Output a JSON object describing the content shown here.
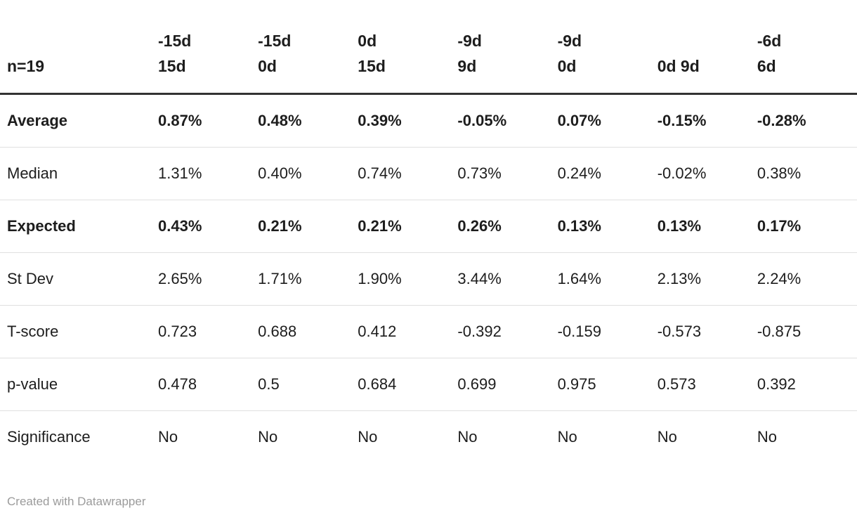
{
  "chart_data": {
    "type": "table",
    "title": "",
    "label_column_header": "n=19",
    "columns": [
      "n=19",
      "-15d\n15d",
      "-15d\n0d",
      "0d\n15d",
      "-9d\n9d",
      "-9d\n0d",
      "0d 9d",
      "-6d\n6d"
    ],
    "rows": [
      {
        "label": "Average",
        "bold": true,
        "values": [
          "0.87%",
          "0.48%",
          "0.39%",
          "-0.05%",
          "0.07%",
          "-0.15%",
          "-0.28%"
        ]
      },
      {
        "label": "Median",
        "bold": false,
        "values": [
          "1.31%",
          "0.40%",
          "0.74%",
          "0.73%",
          "0.24%",
          "-0.02%",
          "0.38%"
        ]
      },
      {
        "label": "Expected",
        "bold": true,
        "values": [
          "0.43%",
          "0.21%",
          "0.21%",
          "0.26%",
          "0.13%",
          "0.13%",
          "0.17%"
        ]
      },
      {
        "label": "St Dev",
        "bold": false,
        "values": [
          "2.65%",
          "1.71%",
          "1.90%",
          "3.44%",
          "1.64%",
          "2.13%",
          "2.24%"
        ]
      },
      {
        "label": "T-score",
        "bold": false,
        "values": [
          "0.723",
          "0.688",
          "0.412",
          "-0.392",
          "-0.159",
          "-0.573",
          "-0.875"
        ]
      },
      {
        "label": "p-value",
        "bold": false,
        "values": [
          "0.478",
          "0.5",
          "0.684",
          "0.699",
          "0.975",
          "0.573",
          "0.392"
        ]
      },
      {
        "label": "Significance",
        "bold": false,
        "values": [
          "No",
          "No",
          "No",
          "No",
          "No",
          "No",
          "No"
        ]
      }
    ],
    "layout_hints": {
      "alignment": "left",
      "header_position": "top",
      "grid": "horizontal-rules-only"
    }
  },
  "footer": {
    "attribution": "Created with Datawrapper"
  },
  "colors": {
    "background": "#ffffff",
    "text": "#1d1d1d",
    "header_border": "#333333",
    "row_border": "#e0e0e0",
    "footer_text": "#9b9b9b"
  }
}
